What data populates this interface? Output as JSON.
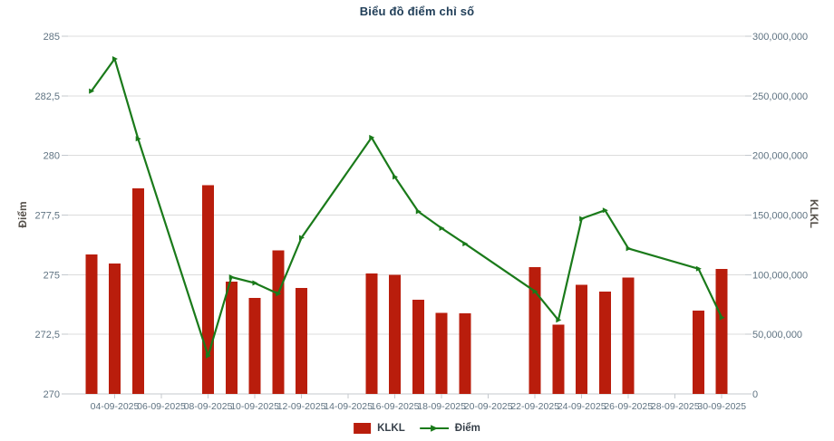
{
  "colors": {
    "bar": "#b91d0c",
    "line": "#1a7a1a",
    "title_text": "#203e58",
    "axis_tick_text": "#5f7382",
    "axis_title_text": "#55504a",
    "grid_line": "#dcdcdc",
    "axis_line": "#c4c9ce",
    "legend_text": "#37404a",
    "background": "#ffffff"
  },
  "chart_data": {
    "type": "bar+line",
    "title": "Biểu đồ điểm chỉ số",
    "x": [
      "03-09-2025",
      "04-09-2025",
      "05-09-2025",
      "08-09-2025",
      "09-09-2025",
      "10-09-2025",
      "11-09-2025",
      "12-09-2025",
      "15-09-2025",
      "16-09-2025",
      "17-09-2025",
      "18-09-2025",
      "19-09-2025",
      "22-09-2025",
      "23-09-2025",
      "24-09-2025",
      "25-09-2025",
      "26-09-2025",
      "29-09-2025",
      "30-09-2025"
    ],
    "series": [
      {
        "name": "KLKL",
        "type": "bar",
        "y_axis": "right",
        "values": [
          117000000,
          109500000,
          172500000,
          175000000,
          94000000,
          80500000,
          120500000,
          89000000,
          101000000,
          100000000,
          79000000,
          68000000,
          67500000,
          106500000,
          58000000,
          91500000,
          86000000,
          97500000,
          70000000,
          105000000
        ]
      },
      {
        "name": "Điểm",
        "type": "line",
        "y_axis": "left",
        "values": [
          282.7,
          284.05,
          280.7,
          271.6,
          274.9,
          274.65,
          274.2,
          276.55,
          280.75,
          279.1,
          277.65,
          276.95,
          276.3,
          274.3,
          273.1,
          277.35,
          277.7,
          276.1,
          275.25,
          273.2
        ]
      }
    ],
    "left_axis": {
      "title": "Điểm",
      "min": 270,
      "max": 285,
      "tick_labels": [
        "285",
        "282,5",
        "280",
        "277,5",
        "275",
        "272,5",
        "270"
      ]
    },
    "right_axis": {
      "title": "KLKL",
      "min": 0,
      "max": 300000000,
      "tick_labels": [
        "300,000,000",
        "250,000,000",
        "200,000,000",
        "150,000,000",
        "100,000,000",
        "50,000,000",
        "0"
      ]
    },
    "x_axis": {
      "tick_labels": [
        "04-09-2025",
        "06-09-2025",
        "08-09-2025",
        "10-09-2025",
        "12-09-2025",
        "14-09-2025",
        "16-09-2025",
        "18-09-2025",
        "20-09-2025",
        "22-09-2025",
        "24-09-2025",
        "26-09-2025",
        "28-09-2025",
        "30-09-2025"
      ]
    },
    "legend": [
      {
        "label": "KLKL"
      },
      {
        "label": "Điểm"
      }
    ],
    "grid": "horizontal-only",
    "legend_position": "bottom-center"
  }
}
